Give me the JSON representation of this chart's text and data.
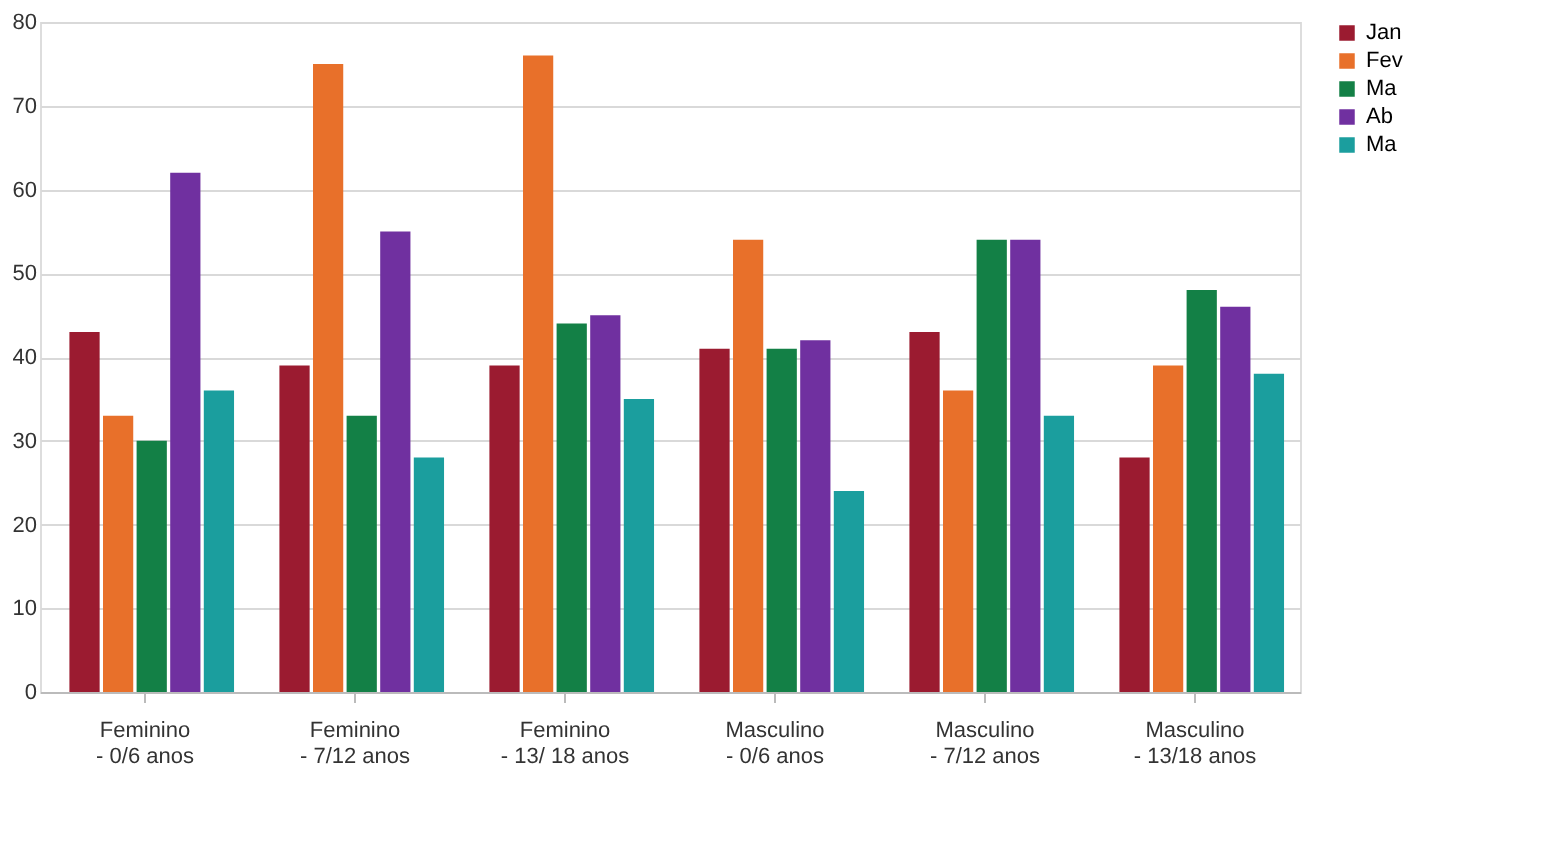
{
  "chart_data": {
    "type": "bar",
    "categories": [
      "Feminino - 0/6 anos",
      "Feminino - 7/12 anos",
      "Feminino - 13/ 18 anos",
      "Masculino - 0/6 anos",
      "Masculino - 7/12 anos",
      "Masculino - 13/18 anos"
    ],
    "series": [
      {
        "name": "Jan",
        "color": "#9b1b30",
        "values": [
          43,
          39,
          39,
          41,
          43,
          28
        ]
      },
      {
        "name": "Fev",
        "color": "#e8702a",
        "values": [
          33,
          75,
          76,
          54,
          36,
          39
        ]
      },
      {
        "name": "Ma",
        "color": "#138046",
        "values": [
          30,
          33,
          44,
          41,
          54,
          48
        ]
      },
      {
        "name": "Ab",
        "color": "#7030a0",
        "values": [
          62,
          55,
          45,
          42,
          54,
          46
        ]
      },
      {
        "name": "Ma",
        "color": "#1b9e9e",
        "values": [
          36,
          28,
          35,
          24,
          33,
          38
        ]
      }
    ],
    "ylim": [
      0,
      80
    ],
    "yticks": [
      0,
      10,
      20,
      30,
      40,
      50,
      60,
      70,
      80
    ],
    "grid": "y",
    "legend": "right"
  }
}
